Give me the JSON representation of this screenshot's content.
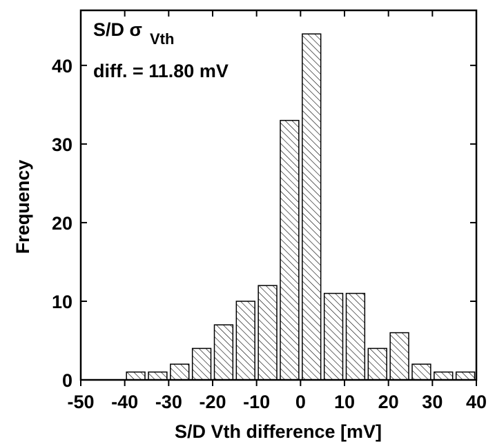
{
  "chart_data": {
    "type": "histogram",
    "xlabel": "S/D Vth difference [mV]",
    "ylabel": "Frequency",
    "annotation": {
      "main": "S/D σ",
      "subscript": "Vth",
      "line2": "diff. = 11.80 mV"
    },
    "bins": [
      -40,
      -35,
      -30,
      -25,
      -20,
      -15,
      -10,
      -5,
      0,
      5,
      10,
      15,
      20,
      25,
      30,
      35,
      40
    ],
    "values": [
      1,
      1,
      2,
      4,
      7,
      10,
      12,
      33,
      44,
      11,
      11,
      4,
      6,
      2,
      1,
      1
    ],
    "color": "#000000",
    "xlim": [
      -50,
      40
    ],
    "xticks": [
      -50,
      -40,
      -30,
      -20,
      -10,
      0,
      10,
      20,
      30,
      40
    ],
    "ylim": [
      0,
      47
    ],
    "yticks": [
      0,
      10,
      20,
      30,
      40
    ]
  }
}
